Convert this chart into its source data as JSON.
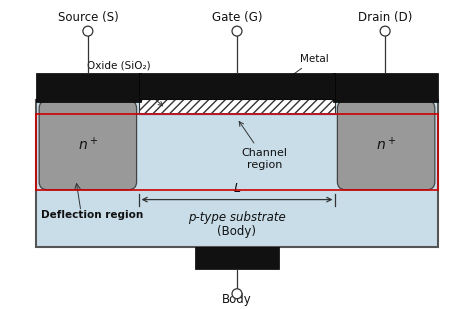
{
  "fig_width": 4.74,
  "fig_height": 3.09,
  "dpi": 100,
  "bg_color": "#ffffff",
  "substrate_color": "#c8dde8",
  "n_region_color": "#999999",
  "metal_color": "#111111",
  "red_line_color": "#cc0000",
  "blue_line_color": "#5599cc",
  "text_color": "#111111",
  "labels": {
    "source": "Source (S)",
    "gate": "Gate (G)",
    "drain": "Drain (D)",
    "oxide": "Oxide (SiO₂)",
    "metal": "Metal",
    "channel": "Channel\nregion",
    "L_label": "L",
    "deflection": "Deflection region",
    "substrate_line1": "p-type substrate",
    "substrate_line2": "(Body)",
    "body": "Body"
  }
}
